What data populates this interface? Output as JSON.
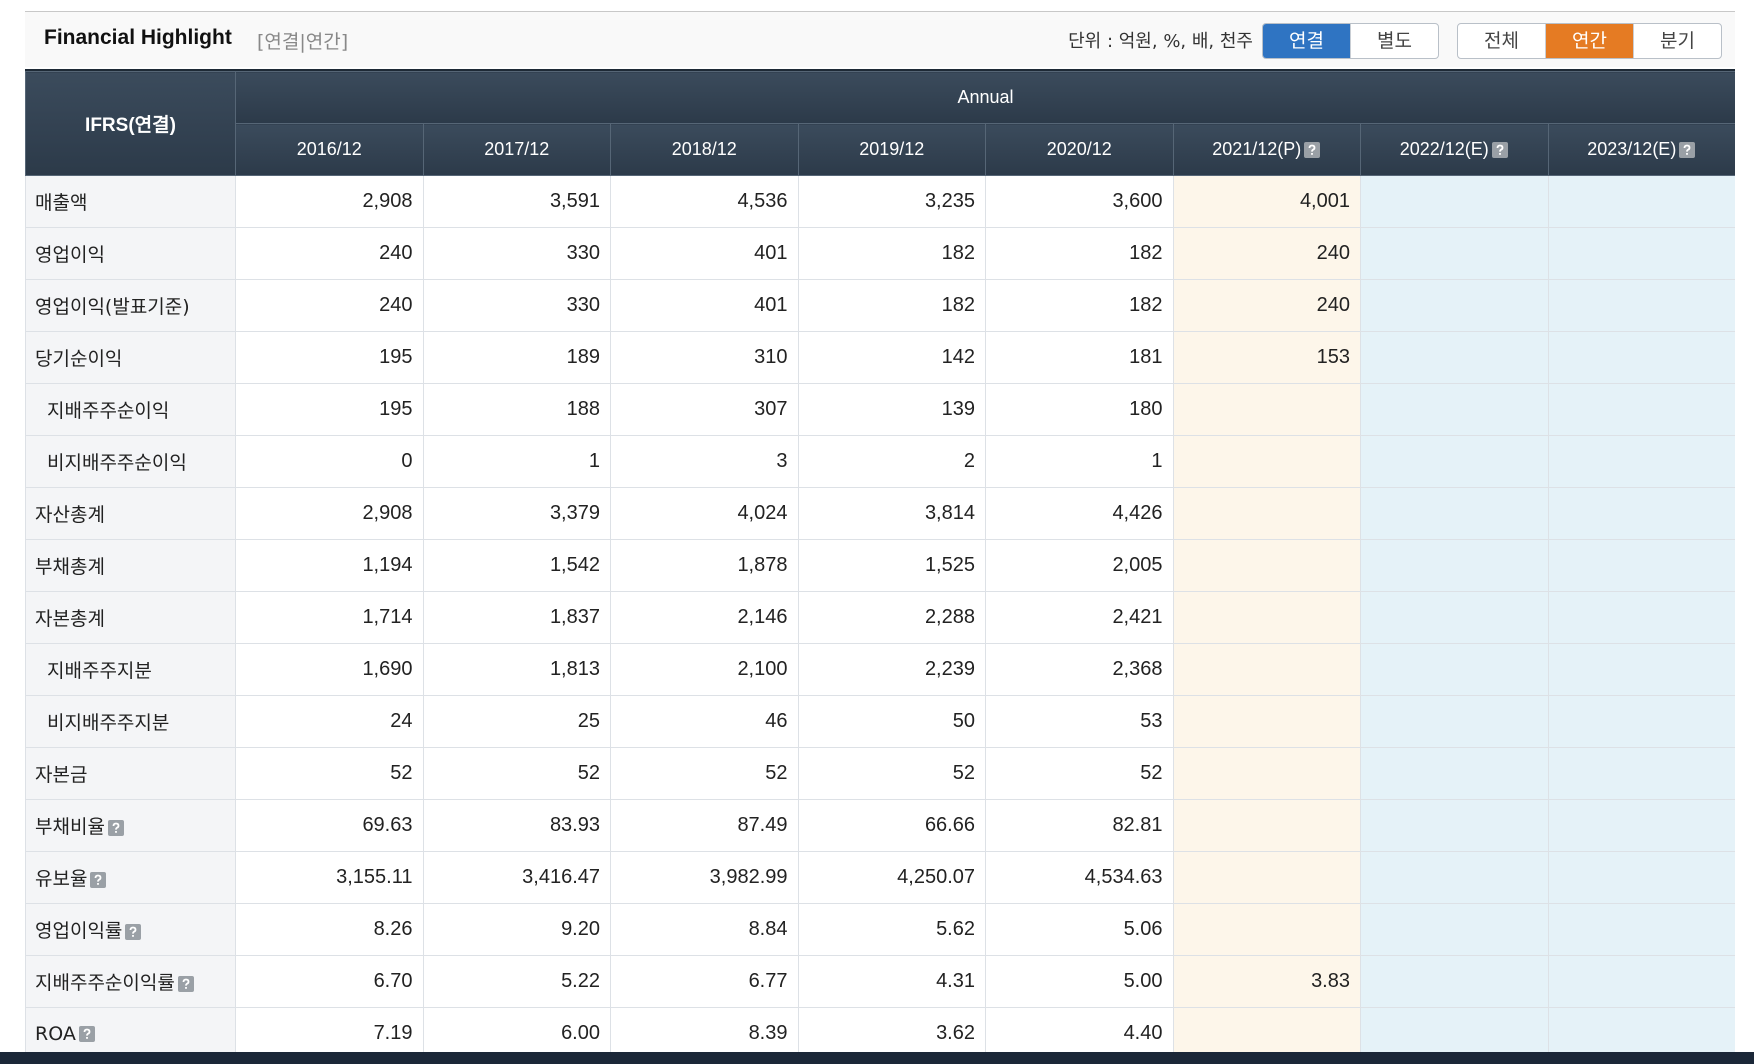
{
  "header": {
    "title": "Financial Highlight",
    "subtitle": "[연결|연간]",
    "unit": "단위 : 억원, %, 배, 천주",
    "button_groups": [
      [
        {
          "label": "연결",
          "active": true,
          "color": "#2f74c2"
        },
        {
          "label": "별도",
          "active": false
        }
      ],
      [
        {
          "label": "전체",
          "active": false
        },
        {
          "label": "연간",
          "active": true,
          "color": "#e57b23"
        },
        {
          "label": "분기",
          "active": false
        }
      ]
    ]
  },
  "table": {
    "corner": "IFRS(연결)",
    "period": "Annual",
    "columns": [
      {
        "label": "2016/12"
      },
      {
        "label": "2017/12"
      },
      {
        "label": "2018/12"
      },
      {
        "label": "2019/12"
      },
      {
        "label": "2020/12"
      },
      {
        "label": "2021/12(P)",
        "help": true,
        "bg": "#fdf6ea"
      },
      {
        "label": "2022/12(E)",
        "help": true,
        "bg": "#e5f2f8"
      },
      {
        "label": "2023/12(E)",
        "help": true,
        "bg": "#e5f2f8"
      }
    ],
    "rows": [
      {
        "label": "매출액",
        "values": [
          "2,908",
          "3,591",
          "4,536",
          "3,235",
          "3,600",
          "4,001",
          null,
          null
        ]
      },
      {
        "label": "영업이익",
        "values": [
          "240",
          "330",
          "401",
          "182",
          "182",
          "240",
          null,
          null
        ]
      },
      {
        "label": "영업이익(발표기준)",
        "values": [
          "240",
          "330",
          "401",
          "182",
          "182",
          "240",
          null,
          null
        ]
      },
      {
        "label": "당기순이익",
        "values": [
          "195",
          "189",
          "310",
          "142",
          "181",
          "153",
          null,
          null
        ]
      },
      {
        "label": "지배주주순이익",
        "sub": true,
        "values": [
          "195",
          "188",
          "307",
          "139",
          "180",
          null,
          null,
          null
        ]
      },
      {
        "label": "비지배주주순이익",
        "sub": true,
        "values": [
          "0",
          "1",
          "3",
          "2",
          "1",
          null,
          null,
          null
        ]
      },
      {
        "label": "자산총계",
        "values": [
          "2,908",
          "3,379",
          "4,024",
          "3,814",
          "4,426",
          null,
          null,
          null
        ]
      },
      {
        "label": "부채총계",
        "values": [
          "1,194",
          "1,542",
          "1,878",
          "1,525",
          "2,005",
          null,
          null,
          null
        ]
      },
      {
        "label": "자본총계",
        "values": [
          "1,714",
          "1,837",
          "2,146",
          "2,288",
          "2,421",
          null,
          null,
          null
        ]
      },
      {
        "label": "지배주주지분",
        "sub": true,
        "values": [
          "1,690",
          "1,813",
          "2,100",
          "2,239",
          "2,368",
          null,
          null,
          null
        ]
      },
      {
        "label": "비지배주주지분",
        "sub": true,
        "values": [
          "24",
          "25",
          "46",
          "50",
          "53",
          null,
          null,
          null
        ]
      },
      {
        "label": "자본금",
        "values": [
          "52",
          "52",
          "52",
          "52",
          "52",
          null,
          null,
          null
        ]
      },
      {
        "label": "부채비율",
        "help": true,
        "values": [
          "69.63",
          "83.93",
          "87.49",
          "66.66",
          "82.81",
          null,
          null,
          null
        ]
      },
      {
        "label": "유보율",
        "help": true,
        "values": [
          "3,155.11",
          "3,416.47",
          "3,982.99",
          "4,250.07",
          "4,534.63",
          null,
          null,
          null
        ]
      },
      {
        "label": "영업이익률",
        "help": true,
        "values": [
          "8.26",
          "9.20",
          "8.84",
          "5.62",
          "5.06",
          null,
          null,
          null
        ]
      },
      {
        "label": "지배주주순이익률",
        "help": true,
        "values": [
          "6.70",
          "5.22",
          "6.77",
          "4.31",
          "5.00",
          "3.83",
          null,
          null
        ]
      },
      {
        "label": "ROA",
        "help": true,
        "values": [
          "7.19",
          "6.00",
          "8.39",
          "3.62",
          "4.40",
          null,
          null,
          null
        ]
      }
    ]
  }
}
